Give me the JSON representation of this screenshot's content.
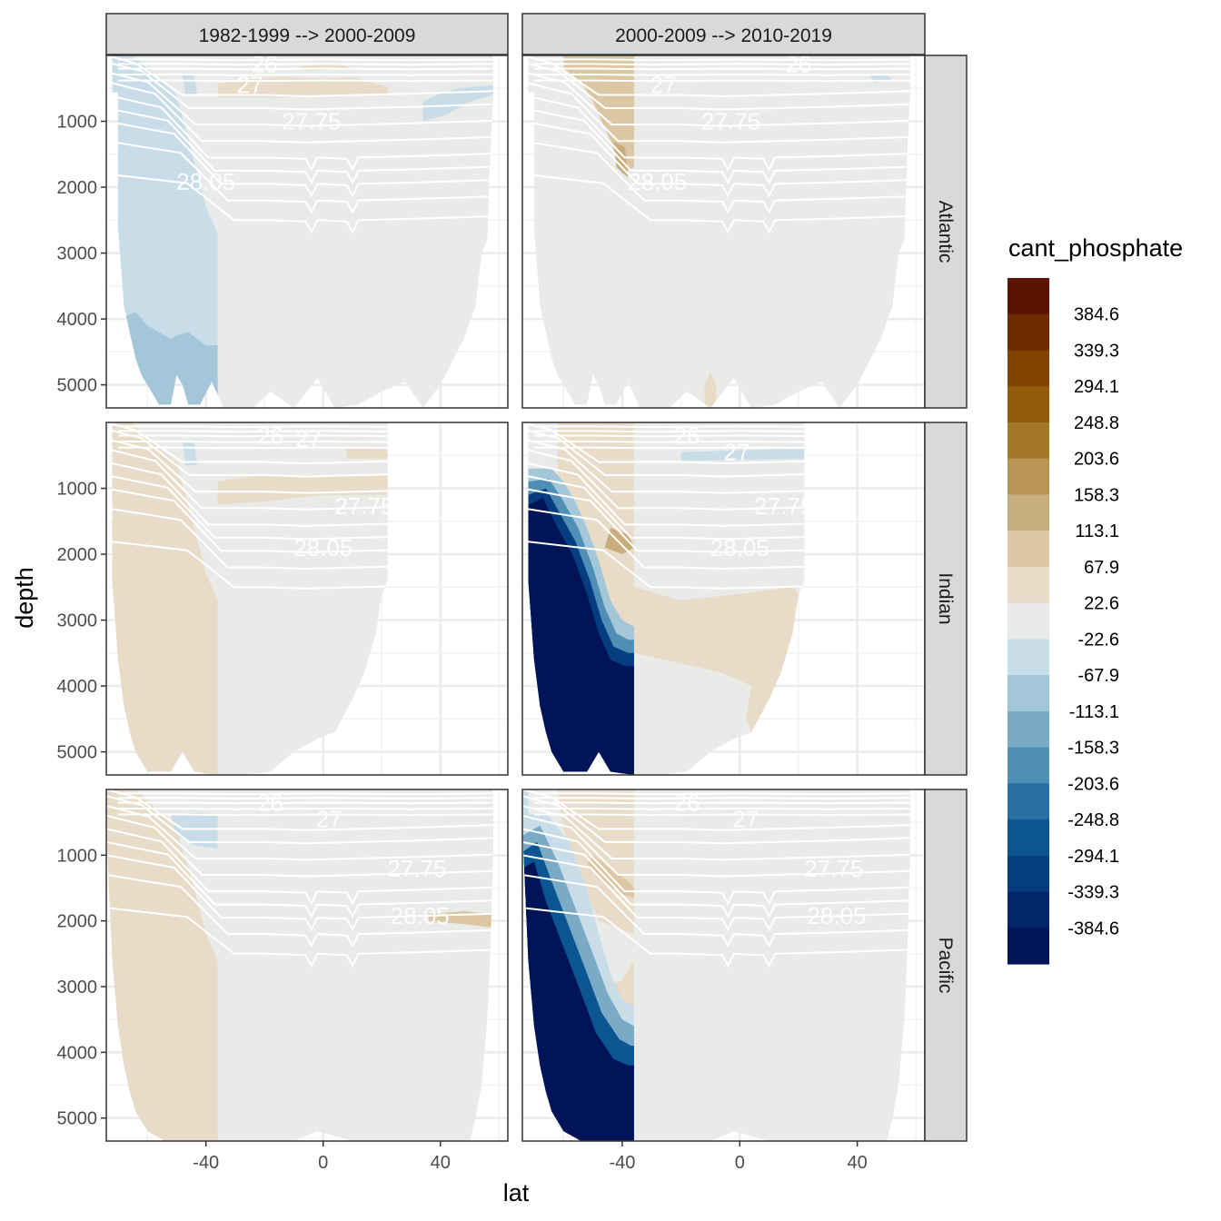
{
  "chart_data": {
    "type": "heatmap",
    "facets": {
      "columns": [
        "1982-1999 --> 2000-2009",
        "2000-2009 --> 2010-2019"
      ],
      "rows": [
        "Atlantic",
        "Indian",
        "Pacific"
      ]
    },
    "xlabel": "lat",
    "ylabel": "depth",
    "x_ticks": [
      -40,
      0,
      40
    ],
    "y_ticks": [
      1000,
      2000,
      3000,
      4000,
      5000
    ],
    "xlim": [
      -74,
      63
    ],
    "ylim": [
      5350,
      0
    ],
    "y_reversed": true,
    "grid": true,
    "legend": {
      "title": "cant_phosphate",
      "position": "right",
      "labels": [
        "384.6",
        "339.3",
        "294.1",
        "248.8",
        "203.6",
        "158.3",
        "113.1",
        "67.9",
        "22.6",
        "-22.6",
        "-67.9",
        "-113.1",
        "-158.3",
        "-203.6",
        "-248.8",
        "-294.1",
        "-339.3",
        "-384.6"
      ],
      "colors": [
        "#5c1300",
        "#6f2a00",
        "#804400",
        "#915d0a",
        "#a4772b",
        "#b89455",
        "#c9ae7d",
        "#dbc7a3",
        "#e8dcc8",
        "#e9ebe8",
        "#c9dde9",
        "#a3c6d9",
        "#7aaac6",
        "#4f8eb5",
        "#2870a4",
        "#0a5592",
        "#053d80",
        "#03266b",
        "#001457"
      ]
    },
    "density_contours": {
      "labels": [
        "26",
        "27",
        "27.75",
        "28.05"
      ],
      "color": "#ffffff"
    },
    "colors": {
      "land_ocean_background": "#ffffff",
      "panel_border": "#333333",
      "strip_background": "#d9d9d9",
      "gridline": "#ebebeb"
    }
  }
}
